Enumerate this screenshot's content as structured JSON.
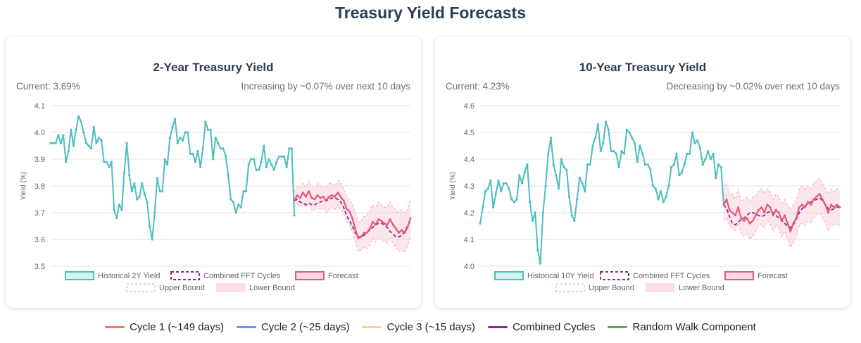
{
  "page": {
    "title": "Treasury Yield Forecasts"
  },
  "charts": [
    {
      "key": "two_year",
      "title": "2-Year Treasury Yield",
      "current": "Current: 3.69%",
      "trend": "Increasing by ~0.07% over next 10 days"
    },
    {
      "key": "ten_year",
      "title": "10-Year Treasury Yield",
      "current": "Current: 4.23%",
      "trend": "Decreasing by ~0.02% over next 10 days"
    }
  ],
  "chart_data": [
    {
      "type": "line",
      "title": "2-Year Treasury Yield",
      "ylabel": "Yield (%)",
      "ylim": [
        3.5,
        4.1
      ],
      "yticks": [
        "3.5",
        "3.6",
        "3.7",
        "3.8",
        "3.9",
        "4.0",
        "4.1"
      ],
      "legend": [
        "Historical 2Y Yield",
        "Combined FFT Cycles",
        "Forecast",
        "Upper Bound",
        "Lower Bound"
      ],
      "historical": [
        3.96,
        3.96,
        3.96,
        3.99,
        3.96,
        3.99,
        3.89,
        3.93,
        4.01,
        3.95,
        4.01,
        4.06,
        4.04,
        4.0,
        3.96,
        3.95,
        3.94,
        4.02,
        3.96,
        3.98,
        3.97,
        3.89,
        3.89,
        3.87,
        3.89,
        3.71,
        3.68,
        3.73,
        3.71,
        3.85,
        3.96,
        3.84,
        3.78,
        3.81,
        3.75,
        3.76,
        3.81,
        3.77,
        3.74,
        3.65,
        3.6,
        3.7,
        3.83,
        3.78,
        3.78,
        3.9,
        3.88,
        3.98,
        4.02,
        4.05,
        3.96,
        3.98,
        3.97,
        4.0,
        4.0,
        3.92,
        3.92,
        3.89,
        3.93,
        3.87,
        3.94,
        4.04,
        4.01,
        4.01,
        3.9,
        3.98,
        3.96,
        3.94,
        3.94,
        3.91,
        3.84,
        3.75,
        3.74,
        3.7,
        3.73,
        3.72,
        3.78,
        3.78,
        3.88,
        3.9,
        3.9,
        3.86,
        3.86,
        3.89,
        3.95,
        3.87,
        3.9,
        3.88,
        3.86,
        3.89,
        3.91,
        3.91,
        3.91,
        3.87,
        3.94,
        3.94,
        3.69
      ],
      "forecast": [
        3.745,
        3.765,
        3.755,
        3.775,
        3.76,
        3.78,
        3.755,
        3.75,
        3.765,
        3.755,
        3.76,
        3.745,
        3.76,
        3.765,
        3.76,
        3.775,
        3.76,
        3.745,
        3.715,
        3.705,
        3.68,
        3.64,
        3.605,
        3.61,
        3.625,
        3.625,
        3.64,
        3.665,
        3.655,
        3.675,
        3.67,
        3.66,
        3.655,
        3.675,
        3.655,
        3.64,
        3.625,
        3.635,
        3.625,
        3.645,
        3.68
      ],
      "combined_fft": [
        3.745,
        3.75,
        3.74,
        3.735,
        3.73,
        3.735,
        3.73,
        3.73,
        3.735,
        3.74,
        3.745,
        3.745,
        3.75,
        3.755,
        3.755,
        3.75,
        3.74,
        3.72,
        3.69,
        3.67,
        3.65,
        3.625,
        3.61,
        3.61,
        3.615,
        3.625,
        3.635,
        3.645,
        3.655,
        3.66,
        3.66,
        3.655,
        3.645,
        3.63,
        3.62,
        3.61,
        3.61,
        3.615,
        3.63,
        3.65,
        3.67
      ],
      "upper_bound": [
        3.78,
        3.8,
        3.795,
        3.81,
        3.795,
        3.82,
        3.8,
        3.79,
        3.81,
        3.8,
        3.8,
        3.79,
        3.81,
        3.81,
        3.8,
        3.82,
        3.81,
        3.79,
        3.76,
        3.75,
        3.73,
        3.7,
        3.665,
        3.67,
        3.685,
        3.69,
        3.71,
        3.73,
        3.72,
        3.74,
        3.73,
        3.72,
        3.72,
        3.74,
        3.72,
        3.71,
        3.7,
        3.71,
        3.7,
        3.71,
        3.75
      ],
      "lower_bound": [
        3.72,
        3.73,
        3.72,
        3.73,
        3.72,
        3.74,
        3.71,
        3.71,
        3.72,
        3.71,
        3.72,
        3.7,
        3.71,
        3.72,
        3.71,
        3.73,
        3.71,
        3.7,
        3.665,
        3.655,
        3.63,
        3.59,
        3.555,
        3.56,
        3.57,
        3.565,
        3.58,
        3.605,
        3.59,
        3.61,
        3.6,
        3.59,
        3.585,
        3.61,
        3.585,
        3.57,
        3.555,
        3.56,
        3.55,
        3.575,
        3.61
      ]
    },
    {
      "type": "line",
      "title": "10-Year Treasury Yield",
      "ylabel": "Yield (%)",
      "ylim": [
        4.0,
        4.6
      ],
      "yticks": [
        "4.0",
        "4.1",
        "4.2",
        "4.3",
        "4.4",
        "4.5",
        "4.6"
      ],
      "legend": [
        "Historical 10Y Yield",
        "Combined FFT Cycles",
        "Forecast",
        "Upper Bound",
        "Lower Bound"
      ],
      "historical": [
        4.16,
        4.22,
        4.28,
        4.29,
        4.32,
        4.22,
        4.27,
        4.32,
        4.28,
        4.31,
        4.31,
        4.29,
        4.25,
        4.24,
        4.25,
        4.34,
        4.31,
        4.35,
        4.38,
        4.24,
        4.17,
        4.2,
        4.06,
        4.01,
        4.2,
        4.3,
        4.42,
        4.48,
        4.38,
        4.34,
        4.29,
        4.4,
        4.37,
        4.36,
        4.26,
        4.19,
        4.17,
        4.25,
        4.33,
        4.31,
        4.28,
        4.38,
        4.38,
        4.45,
        4.48,
        4.53,
        4.43,
        4.46,
        4.54,
        4.51,
        4.43,
        4.43,
        4.42,
        4.37,
        4.43,
        4.42,
        4.51,
        4.5,
        4.48,
        4.46,
        4.39,
        4.45,
        4.42,
        4.38,
        4.38,
        4.36,
        4.3,
        4.29,
        4.25,
        4.28,
        4.24,
        4.26,
        4.3,
        4.37,
        4.38,
        4.42,
        4.34,
        4.35,
        4.38,
        4.42,
        4.42,
        4.5,
        4.46,
        4.47,
        4.44,
        4.38,
        4.4,
        4.43,
        4.4,
        4.42,
        4.33,
        4.38,
        4.37,
        4.23
      ],
      "forecast": [
        4.23,
        4.25,
        4.21,
        4.2,
        4.19,
        4.22,
        4.18,
        4.17,
        4.18,
        4.16,
        4.17,
        4.19,
        4.21,
        4.22,
        4.2,
        4.23,
        4.22,
        4.19,
        4.21,
        4.2,
        4.17,
        4.19,
        4.16,
        4.13,
        4.16,
        4.18,
        4.22,
        4.23,
        4.22,
        4.24,
        4.23,
        4.25,
        4.26,
        4.27,
        4.25,
        4.23,
        4.2,
        4.23,
        4.22,
        4.23,
        4.22
      ],
      "combined_fft": [
        4.23,
        4.215,
        4.185,
        4.16,
        4.155,
        4.165,
        4.175,
        4.18,
        4.19,
        4.2,
        4.2,
        4.195,
        4.19,
        4.185,
        4.19,
        4.2,
        4.205,
        4.2,
        4.19,
        4.18,
        4.17,
        4.16,
        4.15,
        4.145,
        4.155,
        4.175,
        4.2,
        4.215,
        4.225,
        4.235,
        4.24,
        4.245,
        4.25,
        4.255,
        4.245,
        4.23,
        4.215,
        4.21,
        4.215,
        4.22,
        4.225
      ],
      "upper_bound": [
        4.3,
        4.31,
        4.27,
        4.27,
        4.25,
        4.29,
        4.24,
        4.25,
        4.26,
        4.24,
        4.26,
        4.26,
        4.28,
        4.29,
        4.27,
        4.29,
        4.28,
        4.25,
        4.27,
        4.26,
        4.23,
        4.25,
        4.23,
        4.21,
        4.23,
        4.25,
        4.29,
        4.3,
        4.29,
        4.3,
        4.29,
        4.31,
        4.32,
        4.33,
        4.31,
        4.29,
        4.27,
        4.29,
        4.28,
        4.29,
        4.28
      ],
      "lower_bound": [
        4.17,
        4.18,
        4.15,
        4.14,
        4.13,
        4.16,
        4.12,
        4.11,
        4.12,
        4.1,
        4.11,
        4.13,
        4.15,
        4.16,
        4.14,
        4.17,
        4.16,
        4.13,
        4.15,
        4.14,
        4.11,
        4.13,
        4.1,
        4.07,
        4.09,
        4.11,
        4.15,
        4.16,
        4.15,
        4.17,
        4.16,
        4.18,
        4.19,
        4.2,
        4.18,
        4.16,
        4.13,
        4.16,
        4.15,
        4.16,
        4.15
      ]
    }
  ],
  "bottom_legend": [
    {
      "label": "Cycle 1 (~149 days)",
      "color": "#f07470"
    },
    {
      "label": "Cycle 2 (~25 days)",
      "color": "#7b8ff0"
    },
    {
      "label": "Cycle 3 (~15 days)",
      "color": "#f9d38a"
    },
    {
      "label": "Combined Cycles",
      "color": "#8a2a8f"
    },
    {
      "label": "Random Walk Component",
      "color": "#5aae5f"
    }
  ],
  "colors": {
    "historical": "#4bbfbd",
    "forecast": "#e8557a",
    "fft": "#8a2a8f",
    "band": "#f7c9d3"
  }
}
